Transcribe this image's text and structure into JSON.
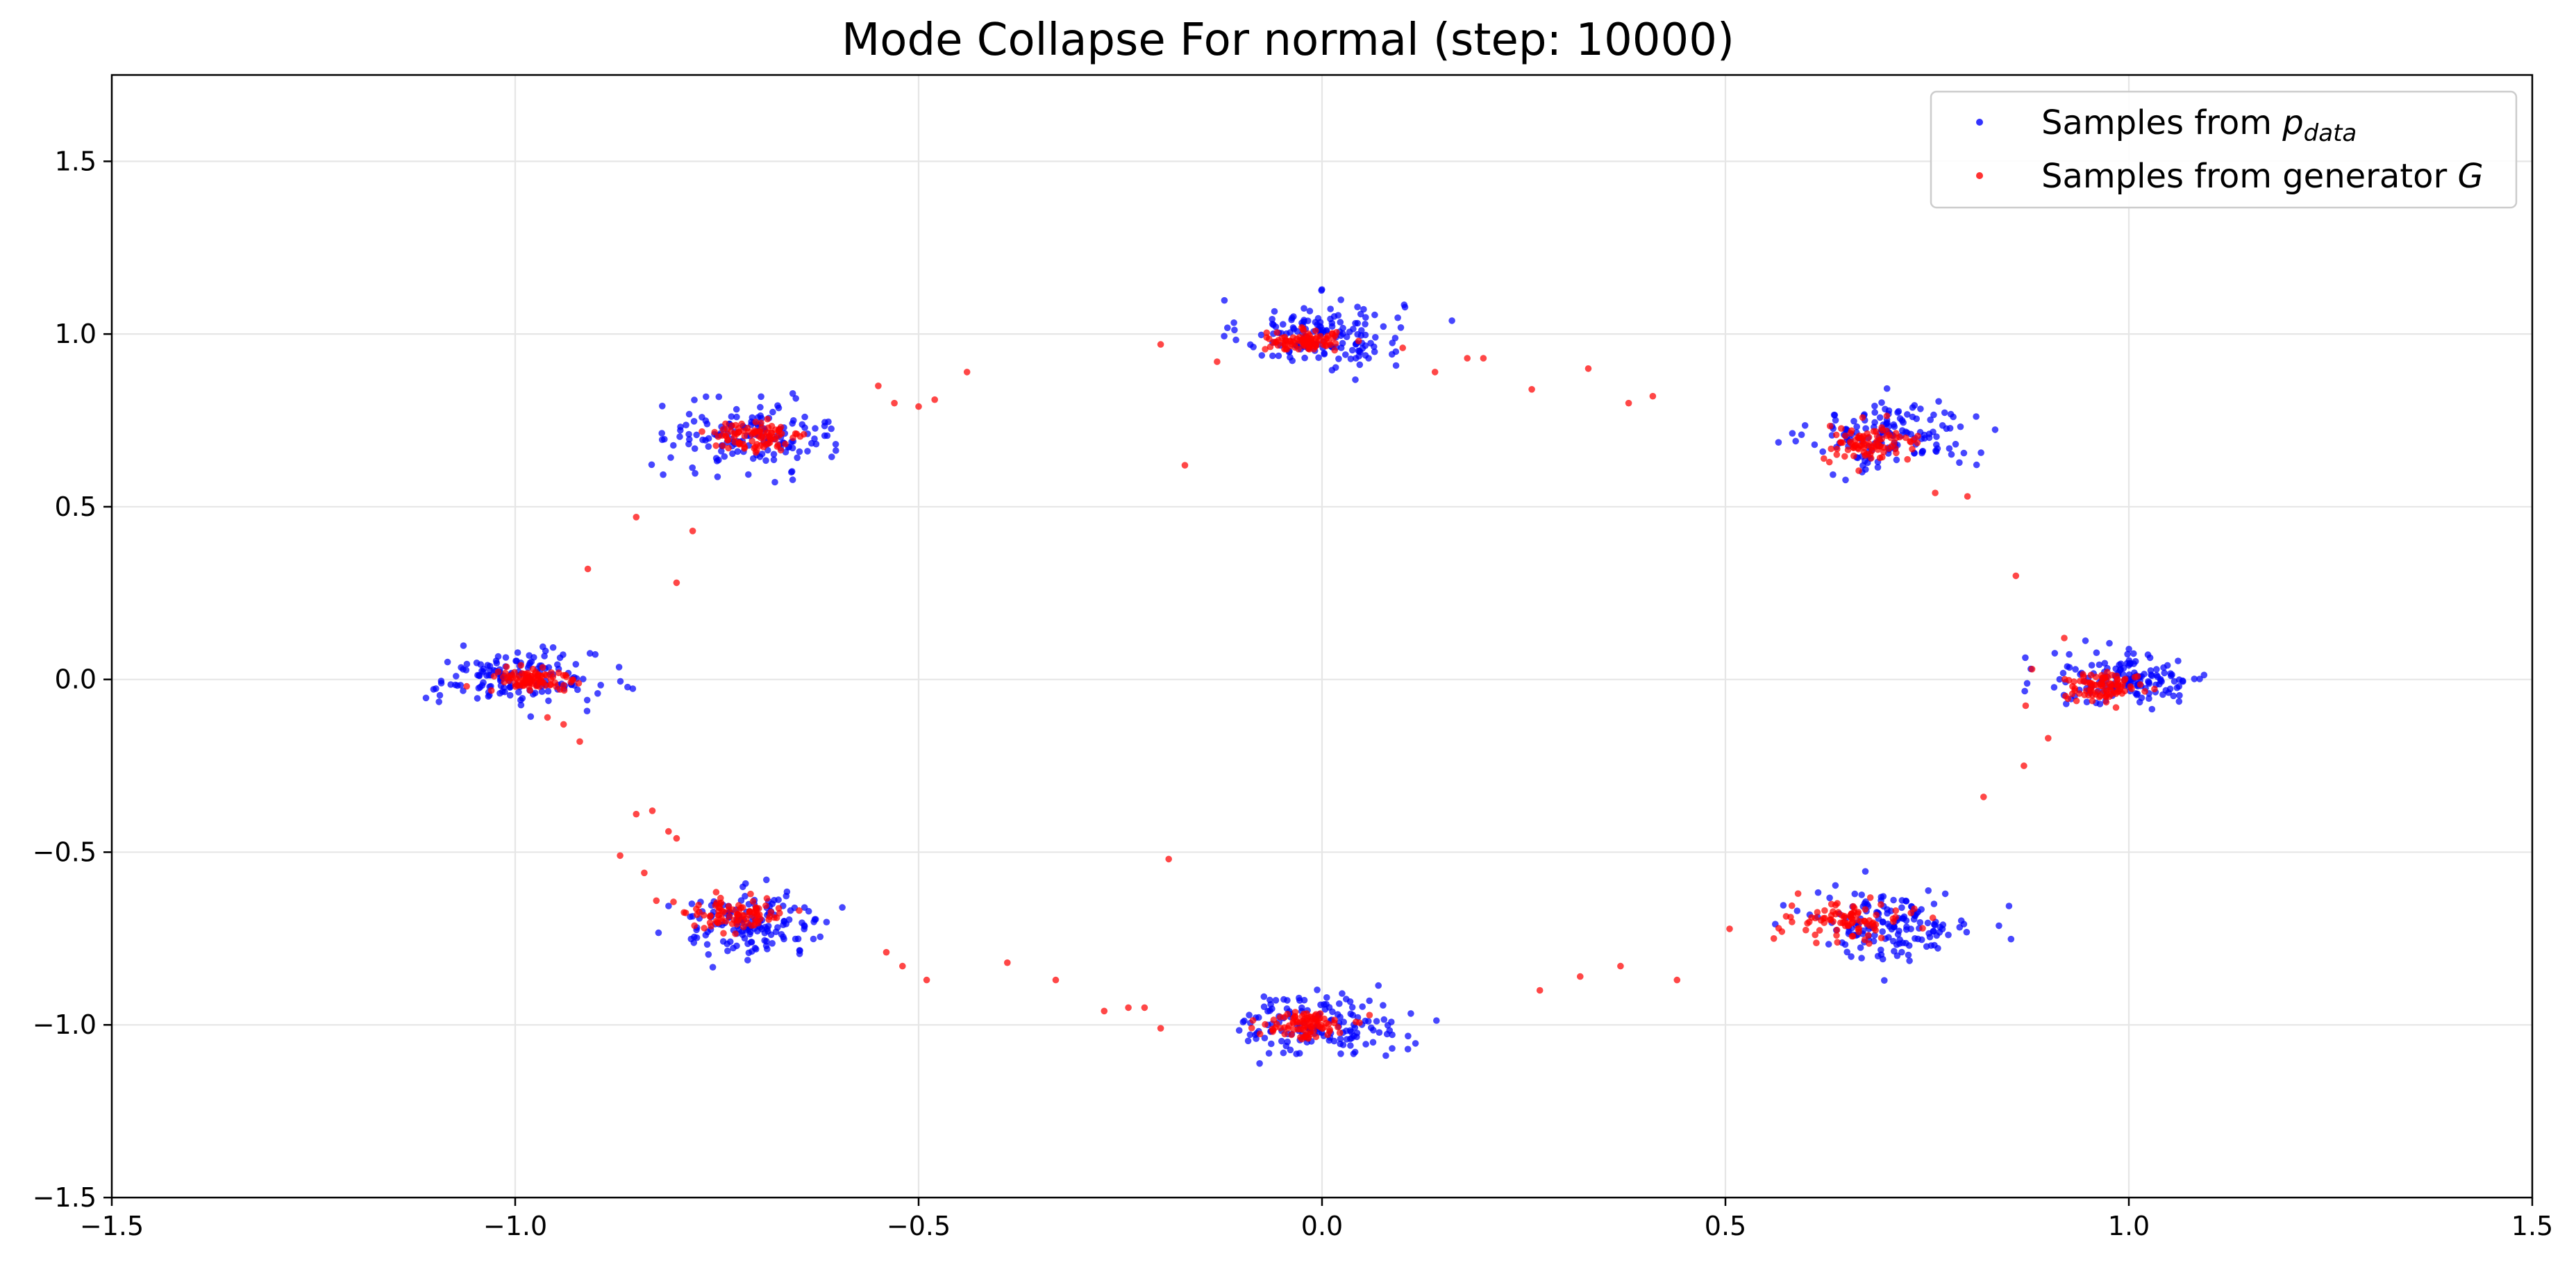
{
  "chart_data": {
    "type": "scatter",
    "title": "Mode Collapse For normal (step: 10000)",
    "xlabel": "",
    "ylabel": "",
    "xlim": [
      -1.5,
      1.5
    ],
    "ylim": [
      -1.5,
      1.75
    ],
    "x_ticks": [
      -1.5,
      -1.0,
      -0.5,
      0.0,
      0.5,
      1.0,
      1.5
    ],
    "x_tick_labels": [
      "−1.5",
      "−1.0",
      "−0.5",
      "0.0",
      "0.5",
      "1.0",
      "1.5"
    ],
    "y_ticks": [
      -1.5,
      -1.0,
      -0.5,
      0.0,
      0.5,
      1.0,
      1.5
    ],
    "y_tick_labels": [
      "−1.5",
      "−1.0",
      "−0.5",
      "0.0",
      "0.5",
      "1.0",
      "1.5"
    ],
    "grid": true,
    "legend_position": "top-right",
    "series": [
      {
        "name": "Samples from p_data",
        "legend_main": "Samples from ",
        "legend_italic": "p",
        "legend_sub": "data",
        "color": "#0000ff",
        "modes": [
          {
            "center": [
              0.0,
              1.0
            ],
            "sd": [
              0.05,
              0.05
            ],
            "count": 150
          },
          {
            "center": [
              0.707,
              0.707
            ],
            "sd": [
              0.05,
              0.05
            ],
            "count": 150
          },
          {
            "center": [
              1.0,
              0.0
            ],
            "sd": [
              0.05,
              0.04
            ],
            "count": 150
          },
          {
            "center": [
              0.707,
              -0.707
            ],
            "sd": [
              0.05,
              0.05
            ],
            "count": 150
          },
          {
            "center": [
              0.0,
              -1.0
            ],
            "sd": [
              0.05,
              0.045
            ],
            "count": 150
          },
          {
            "center": [
              -0.707,
              -0.707
            ],
            "sd": [
              0.05,
              0.045
            ],
            "count": 150
          },
          {
            "center": [
              -1.0,
              0.0
            ],
            "sd": [
              0.05,
              0.04
            ],
            "count": 150
          },
          {
            "center": [
              -0.707,
              0.707
            ],
            "sd": [
              0.05,
              0.05
            ],
            "count": 150
          }
        ]
      },
      {
        "name": "Samples from generator G",
        "legend_main": "Samples from generator ",
        "legend_italic": "G",
        "legend_sub": "",
        "color": "#ff0000",
        "modes": [
          {
            "center": [
              -0.02,
              0.98
            ],
            "sd": [
              0.025,
              0.015
            ],
            "count": 90
          },
          {
            "center": [
              0.68,
              0.68
            ],
            "sd": [
              0.03,
              0.025
            ],
            "count": 90
          },
          {
            "center": [
              0.97,
              -0.02
            ],
            "sd": [
              0.025,
              0.02
            ],
            "count": 90
          },
          {
            "center": [
              0.65,
              -0.7
            ],
            "sd": [
              0.035,
              0.025
            ],
            "count": 90
          },
          {
            "center": [
              -0.02,
              -1.0
            ],
            "sd": [
              0.025,
              0.02
            ],
            "count": 90
          },
          {
            "center": [
              -0.73,
              -0.68
            ],
            "sd": [
              0.035,
              0.025
            ],
            "count": 90
          },
          {
            "center": [
              -0.98,
              0.0
            ],
            "sd": [
              0.025,
              0.02
            ],
            "count": 90
          },
          {
            "center": [
              -0.7,
              0.7
            ],
            "sd": [
              0.03,
              0.025
            ],
            "count": 90
          }
        ],
        "outliers": [
          [
            -0.55,
            0.85
          ],
          [
            -0.53,
            0.8
          ],
          [
            -0.5,
            0.79
          ],
          [
            -0.48,
            0.81
          ],
          [
            -0.44,
            0.89
          ],
          [
            -0.2,
            0.97
          ],
          [
            -0.17,
            0.62
          ],
          [
            -0.13,
            0.92
          ],
          [
            0.1,
            0.96
          ],
          [
            0.14,
            0.89
          ],
          [
            0.18,
            0.93
          ],
          [
            0.2,
            0.93
          ],
          [
            0.26,
            0.84
          ],
          [
            0.33,
            0.9
          ],
          [
            0.38,
            0.8
          ],
          [
            0.41,
            0.82
          ],
          [
            -0.85,
            0.47
          ],
          [
            -0.78,
            0.43
          ],
          [
            -0.91,
            0.32
          ],
          [
            -0.8,
            0.28
          ],
          [
            0.76,
            0.54
          ],
          [
            0.8,
            0.53
          ],
          [
            0.86,
            0.3
          ],
          [
            0.92,
            0.12
          ],
          [
            0.9,
            -0.17
          ],
          [
            0.87,
            -0.25
          ],
          [
            0.82,
            -0.34
          ],
          [
            0.88,
            0.03
          ],
          [
            -0.92,
            -0.18
          ],
          [
            -0.94,
            -0.13
          ],
          [
            -0.96,
            -0.11
          ],
          [
            -0.85,
            -0.39
          ],
          [
            -0.83,
            -0.38
          ],
          [
            -0.81,
            -0.44
          ],
          [
            -0.8,
            -0.46
          ],
          [
            -0.87,
            -0.51
          ],
          [
            -0.84,
            -0.56
          ],
          [
            -0.54,
            -0.79
          ],
          [
            -0.52,
            -0.83
          ],
          [
            -0.49,
            -0.87
          ],
          [
            -0.39,
            -0.82
          ],
          [
            -0.33,
            -0.87
          ],
          [
            -0.27,
            -0.96
          ],
          [
            -0.24,
            -0.95
          ],
          [
            -0.22,
            -0.95
          ],
          [
            -0.2,
            -1.01
          ],
          [
            -0.19,
            -0.52
          ],
          [
            0.27,
            -0.9
          ],
          [
            0.32,
            -0.86
          ],
          [
            0.37,
            -0.83
          ],
          [
            0.44,
            -0.87
          ],
          [
            0.56,
            -0.75
          ],
          [
            0.57,
            -0.73
          ],
          [
            0.59,
            -0.62
          ]
        ]
      }
    ]
  }
}
